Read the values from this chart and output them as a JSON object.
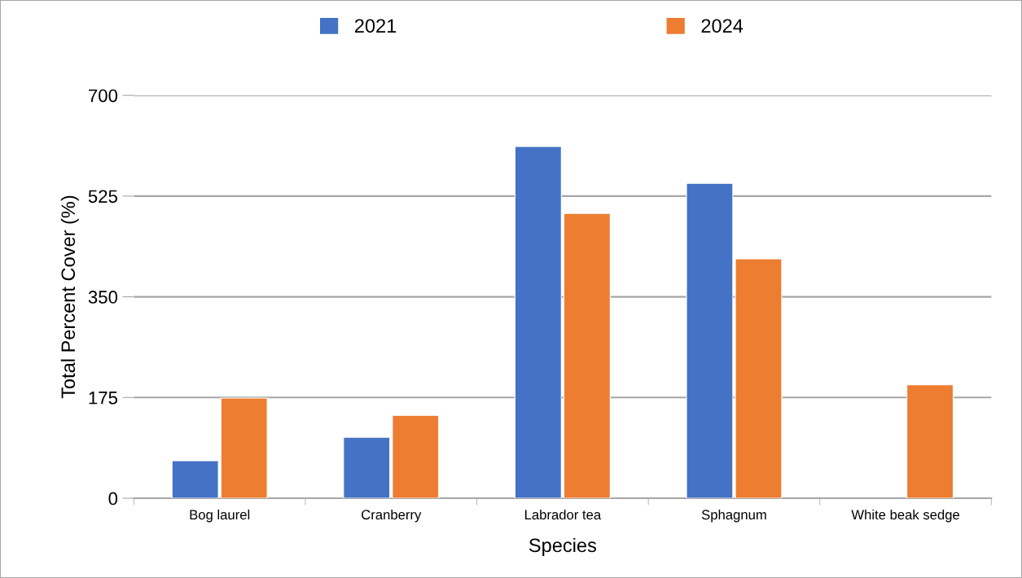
{
  "chart_data": {
    "type": "bar",
    "xlabel": "Species",
    "ylabel": "Total Percent Cover (%)",
    "categories": [
      "Bog laurel",
      "Cranberry",
      "Labrador tea",
      "Sphagnum",
      "White beak sedge"
    ],
    "series": [
      {
        "name": "2021",
        "color": "#4472c4",
        "values": [
          65,
          106,
          611,
          547,
          null
        ]
      },
      {
        "name": "2024",
        "color": "#ed7d31",
        "values": [
          174,
          144,
          495,
          416,
          197
        ]
      }
    ],
    "ylim": [
      0,
      700
    ],
    "yticks": [
      0,
      175,
      350,
      525,
      700
    ],
    "grid": "y",
    "legend": "top"
  }
}
